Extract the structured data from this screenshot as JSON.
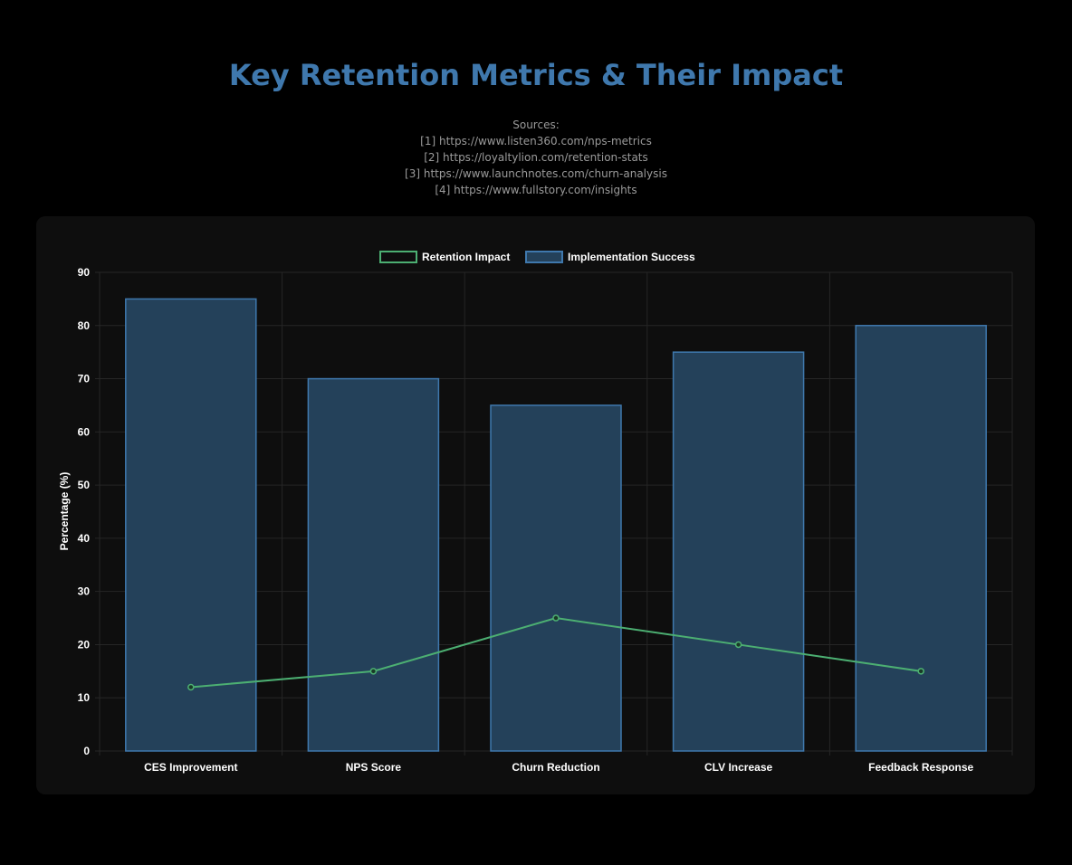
{
  "title": "Key Retention Metrics & Their Impact",
  "sources": {
    "heading": "Sources:",
    "items": [
      "[1] https://www.listen360.com/nps-metrics",
      "[2] https://loyaltylion.com/retention-stats",
      "[3] https://www.launchnotes.com/churn-analysis",
      "[4] https://www.fullstory.com/insights"
    ]
  },
  "chart_data": {
    "type": "bar",
    "categories": [
      "CES Improvement",
      "NPS Score",
      "Churn Reduction",
      "CLV Increase",
      "Feedback Response"
    ],
    "series": [
      {
        "name": "Retention Impact",
        "type": "line",
        "values": [
          12,
          15,
          25,
          20,
          15
        ],
        "color": "#4caf72"
      },
      {
        "name": "Implementation Success",
        "type": "bar",
        "values": [
          85,
          70,
          65,
          75,
          80
        ],
        "color": "#3f78ad",
        "fill": "#24415a"
      }
    ],
    "ylabel": "Percentage (%)",
    "xlabel": "",
    "ylim": [
      0,
      90
    ],
    "yticks": [
      0,
      10,
      20,
      30,
      40,
      50,
      60,
      70,
      80,
      90
    ],
    "grid": true,
    "legend": "top"
  }
}
